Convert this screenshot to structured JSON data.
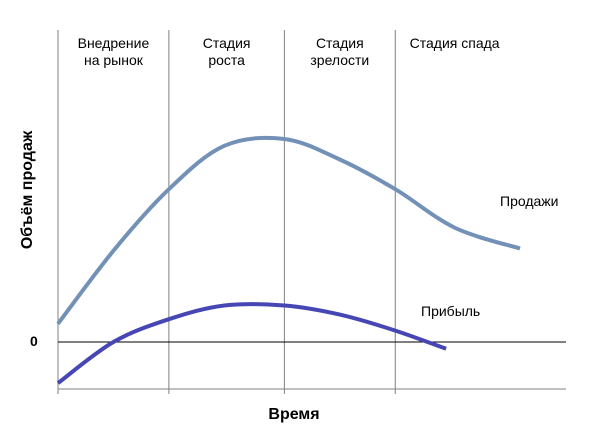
{
  "chart_data": {
    "type": "line",
    "xlabel": "Время",
    "ylabel": "Объём продаж",
    "xlim": [
      0,
      100
    ],
    "ylim": [
      -20,
      100
    ],
    "zero_label": "0",
    "stages": [
      {
        "lines": [
          "Внедрение",
          "на рынок"
        ],
        "start": 0,
        "end": 24
      },
      {
        "lines": [
          "Стадия",
          "роста"
        ],
        "start": 24,
        "end": 49
      },
      {
        "lines": [
          "Стадия",
          "зрелости"
        ],
        "start": 49,
        "end": 73
      },
      {
        "lines": [
          "Стадия спада"
        ],
        "start": 73,
        "end": 100
      }
    ],
    "series": [
      {
        "name": "Продажи",
        "color": "#7391b6",
        "x": [
          0,
          12,
          24,
          36,
          49,
          61,
          73,
          86,
          100
        ],
        "y": [
          8,
          40,
          67,
          86,
          89,
          80,
          67,
          50,
          41
        ]
      },
      {
        "name": "Прибыль",
        "color": "#4646b4",
        "x": [
          0,
          12,
          24,
          36,
          49,
          61,
          73,
          84
        ],
        "y": [
          -18,
          0,
          10,
          16,
          16,
          12,
          5,
          -3
        ]
      }
    ],
    "grid": false
  }
}
